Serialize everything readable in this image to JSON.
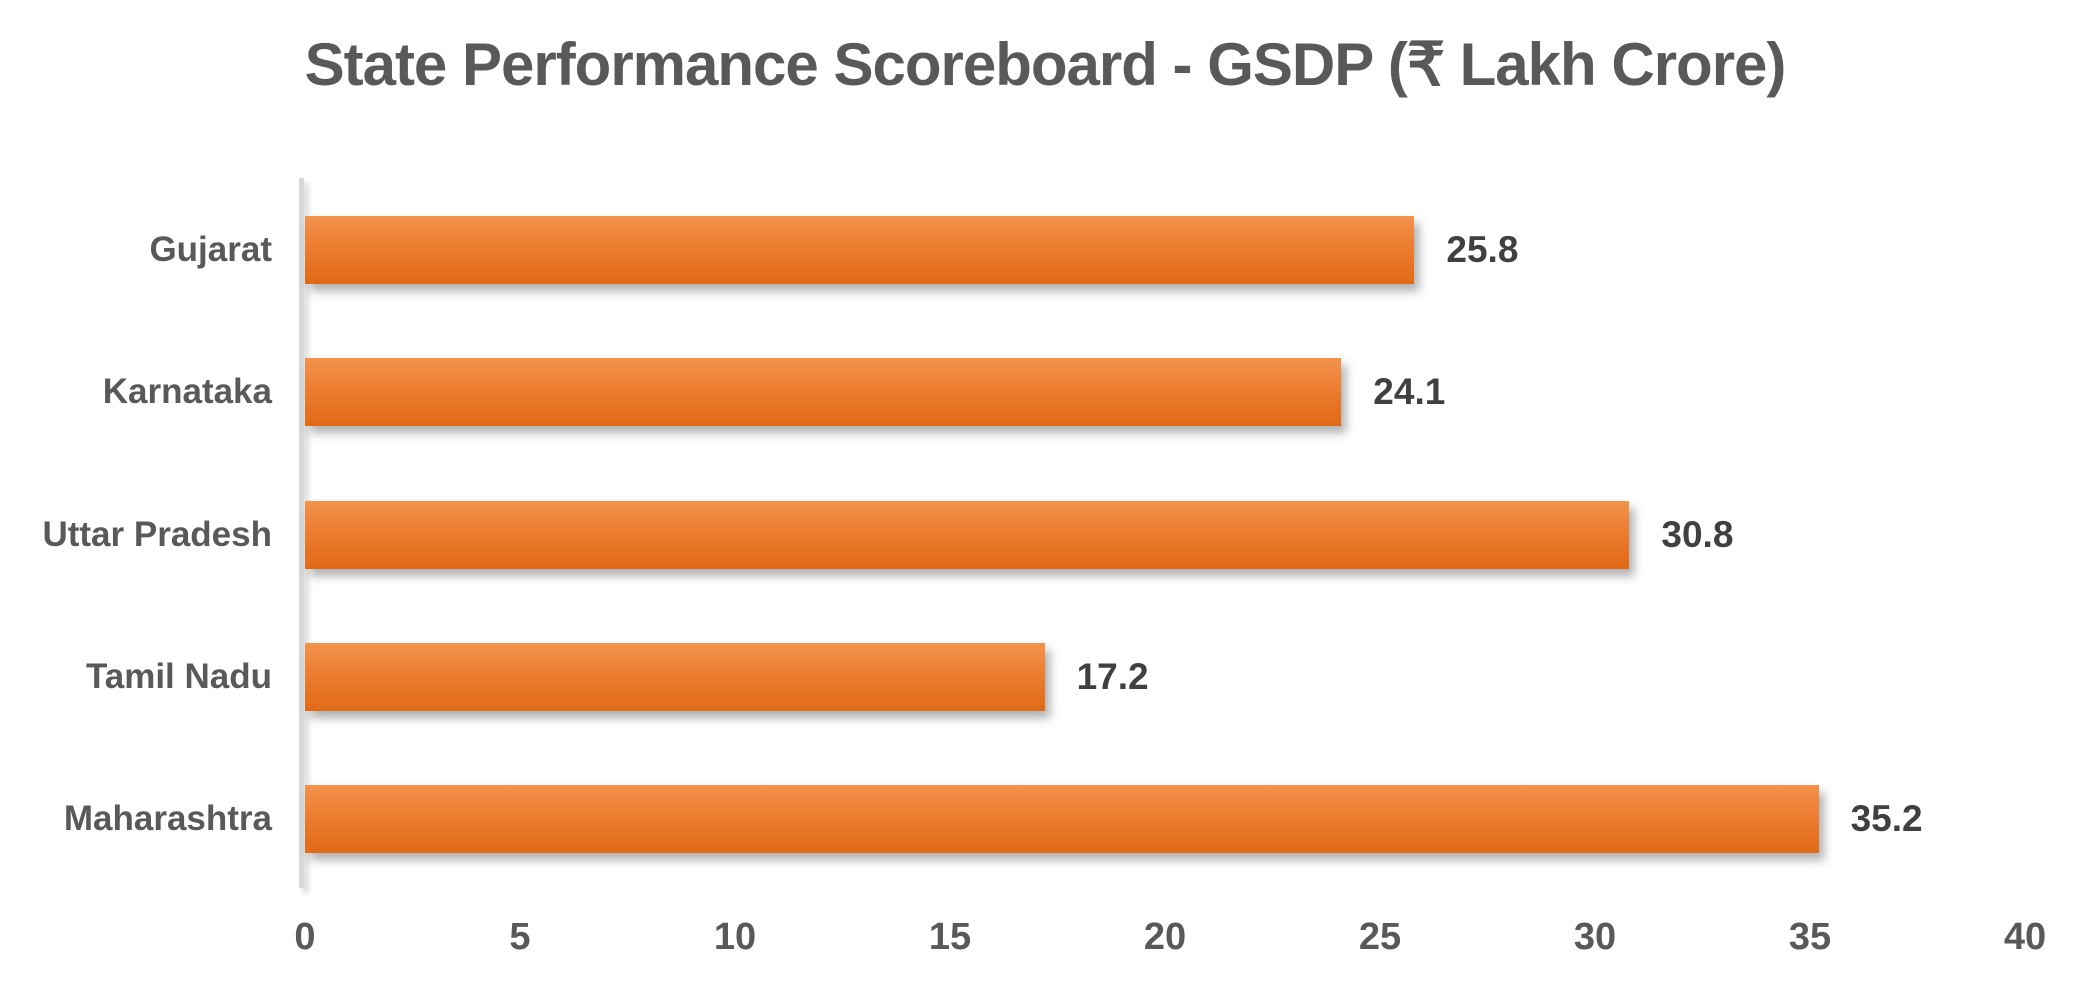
{
  "chart_data": {
    "type": "bar",
    "orientation": "horizontal",
    "title": "State Performance Scoreboard - GSDP (₹ Lakh Crore)",
    "categories": [
      "Gujarat",
      "Karnataka",
      "Uttar Pradesh",
      "Tamil Nadu",
      "Maharashtra"
    ],
    "values": [
      25.8,
      24.1,
      30.8,
      17.2,
      35.2
    ],
    "value_labels": [
      "25.8",
      "24.1",
      "30.8",
      "17.2",
      "35.2"
    ],
    "x_ticks": [
      "0",
      "5",
      "10",
      "15",
      "20",
      "25",
      "30",
      "35",
      "40"
    ],
    "xlim": [
      0,
      40
    ],
    "xlabel": "",
    "ylabel": "",
    "grid": false,
    "legend": "none",
    "data_labels": "outside-end",
    "colors": {
      "bar": "#ED7D31",
      "bar_gradient_top": "#F3934C",
      "bar_gradient_bottom": "#E06A15",
      "axis_line": "#D9D9D9",
      "title_text": "#595959",
      "category_text": "#595959",
      "tick_text": "#595959",
      "value_text": "#404040",
      "background": "#FFFFFF"
    }
  }
}
